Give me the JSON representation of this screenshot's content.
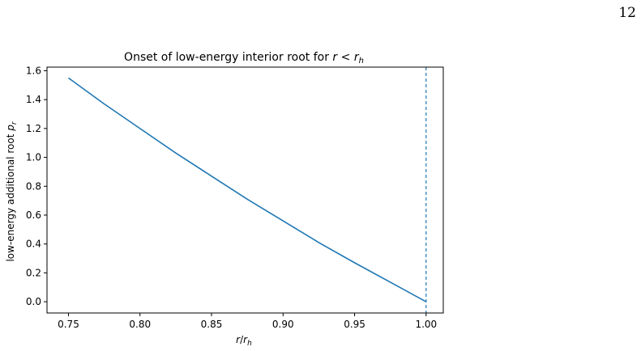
{
  "page": {
    "number": "12"
  },
  "chart_data": {
    "type": "line",
    "title": "Onset of low-energy interior root for r < r_h",
    "title_parts": {
      "prefix": "Onset of low-energy interior root for ",
      "var": "r",
      "op": " < ",
      "base": "r",
      "sub": "h"
    },
    "xlabel": "r/r_h",
    "xlabel_parts": {
      "a": "r",
      "slash": "/",
      "b": "r",
      "sub": "h"
    },
    "ylabel": "low-energy additional root p_r",
    "ylabel_parts": {
      "text": "low-energy additional root ",
      "var": "p",
      "sub": "r"
    },
    "xlim": [
      0.735,
      1.012
    ],
    "ylim": [
      -0.078,
      1.625
    ],
    "x_ticks": [
      0.75,
      0.8,
      0.85,
      0.9,
      0.95,
      1.0
    ],
    "x_tick_labels": [
      "0.75",
      "0.80",
      "0.85",
      "0.90",
      "0.95",
      "1.00"
    ],
    "y_ticks": [
      0.0,
      0.2,
      0.4,
      0.6,
      0.8,
      1.0,
      1.2,
      1.4,
      1.6
    ],
    "y_tick_labels": [
      "0.0",
      "0.2",
      "0.4",
      "0.6",
      "0.8",
      "1.0",
      "1.2",
      "1.4",
      "1.6"
    ],
    "grid": false,
    "series": [
      {
        "color": "#1f77b4",
        "x": [
          0.75,
          0.775,
          0.8,
          0.825,
          0.85,
          0.875,
          0.9,
          0.925,
          0.95,
          0.975,
          1.0
        ],
        "y": [
          1.55,
          1.37,
          1.2,
          1.03,
          0.87,
          0.71,
          0.56,
          0.41,
          0.27,
          0.135,
          0.0
        ]
      }
    ],
    "vline": {
      "x": 1.0,
      "style": "dashed",
      "color": "#1f77b4"
    }
  }
}
